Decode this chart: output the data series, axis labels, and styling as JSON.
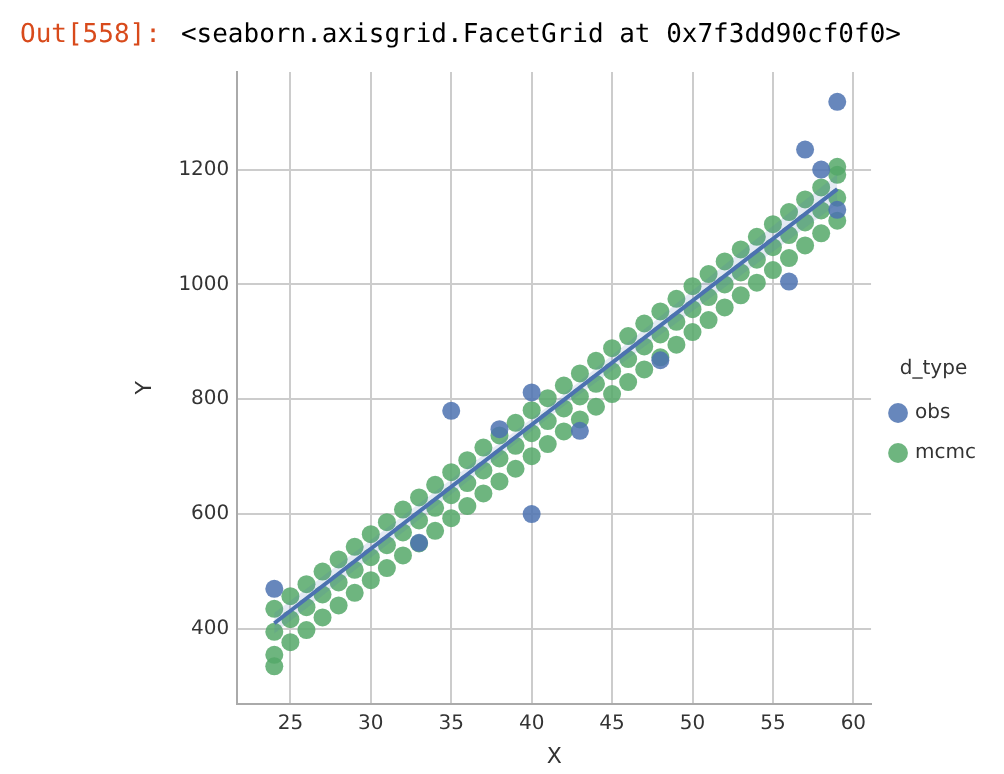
{
  "chart_data": {
    "type": "scatter",
    "xlabel": "X",
    "ylabel": "Y",
    "legend_title": "d_type",
    "legend": "right",
    "grid": true,
    "marker": "circle",
    "annotations": [
      "Out[558]:",
      "<seaborn.axisgrid.FacetGrid at 0x7f3dd90cf0f0>"
    ],
    "xlim": [
      21.7,
      61.1
    ],
    "xticks": [
      25,
      30,
      35,
      40,
      45,
      50,
      55,
      60
    ],
    "ylim": [
      270,
      1370
    ],
    "yticks": [
      400,
      600,
      800,
      1000,
      1200
    ],
    "series": [
      {
        "name": "obs",
        "color": "#4c72b0",
        "x": [
          24,
          33,
          35,
          38,
          40,
          40,
          43,
          48,
          56,
          57,
          58,
          59,
          59
        ],
        "values": [
          470,
          550,
          780,
          748,
          812,
          600,
          745,
          868,
          1005,
          1235,
          1200,
          1318,
          1130
        ]
      },
      {
        "name": "mcmc",
        "color": "#55a868",
        "x": [
          24,
          25,
          26,
          27,
          28,
          29,
          30,
          31,
          32,
          33,
          34,
          35,
          36,
          37,
          38,
          39,
          40,
          41,
          42,
          43,
          44,
          45,
          46,
          47,
          48,
          49,
          50,
          51,
          52,
          53,
          54,
          55,
          56,
          57,
          58,
          59,
          24,
          25,
          26,
          27,
          28,
          29,
          30,
          31,
          32,
          33,
          34,
          35,
          36,
          37,
          38,
          39,
          40,
          41,
          42,
          43,
          44,
          45,
          46,
          47,
          48,
          49,
          50,
          51,
          52,
          53,
          54,
          55,
          56,
          57,
          58,
          59,
          24,
          25,
          26,
          27,
          28,
          29,
          30,
          31,
          32,
          33,
          34,
          35,
          36,
          37,
          38,
          39,
          40,
          41,
          42,
          43,
          44,
          45,
          46,
          47,
          48,
          49,
          50,
          51,
          52,
          53,
          54,
          55,
          56,
          57,
          58,
          59,
          24,
          59
        ],
        "values": [
          435,
          457,
          478,
          500,
          521,
          543,
          565,
          586,
          608,
          629,
          651,
          673,
          694,
          716,
          737,
          759,
          781,
          802,
          824,
          845,
          867,
          889,
          910,
          932,
          953,
          975,
          997,
          1018,
          1040,
          1061,
          1083,
          1105,
          1126,
          1148,
          1169,
          1191,
          395,
          417,
          438,
          460,
          481,
          503,
          525,
          546,
          568,
          589,
          611,
          633,
          654,
          676,
          697,
          719,
          741,
          762,
          784,
          805,
          827,
          849,
          870,
          892,
          913,
          935,
          957,
          978,
          1000,
          1021,
          1043,
          1065,
          1086,
          1108,
          1129,
          1151,
          355,
          377,
          398,
          420,
          441,
          463,
          485,
          506,
          528,
          549,
          571,
          593,
          614,
          636,
          657,
          679,
          701,
          722,
          744,
          765,
          787,
          809,
          830,
          852,
          873,
          895,
          917,
          938,
          960,
          981,
          1003,
          1025,
          1046,
          1068,
          1089,
          1111,
          335,
          1205
        ]
      },
      {
        "type": "line",
        "marker": "none",
        "color": "#4c72b0",
        "x": [
          24,
          41.5,
          59
        ],
        "values": [
          410,
          788,
          1166
        ],
        "lower": [
          392,
          778,
          1140
        ],
        "upper": [
          428,
          798,
          1192
        ]
      }
    ]
  }
}
